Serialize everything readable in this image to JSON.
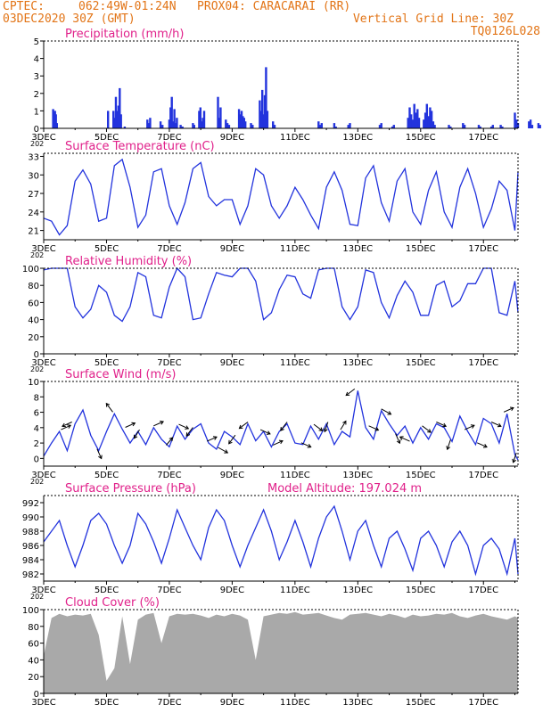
{
  "header": {
    "source": "CPTEC:",
    "location": "062:49W-01:24N   PROX04: CARACARAI (RR)",
    "run": "03DEC2020 30Z (GMT)",
    "grid_line": "Vertical Grid Line: 30Z",
    "model": "TQ0126L028"
  },
  "colors": {
    "line": "#2233dd",
    "title": "#e0208a",
    "header": "#e27416",
    "cloud": "#a9a9a9",
    "axis": "#000000"
  },
  "x_ticks": [
    "3DEC",
    "5DEC",
    "7DEC",
    "9DEC",
    "11DEC",
    "13DEC",
    "15DEC",
    "17DEC"
  ],
  "x_range_days": [
    0,
    15.1
  ],
  "cut_tick": "202",
  "chart_data": [
    {
      "id": "precip",
      "type": "bar",
      "title": "Precipitation (mm/h)",
      "ylim": [
        0,
        5
      ],
      "yticks": [
        0,
        1,
        2,
        3,
        4,
        5
      ],
      "x_day": [
        0.3,
        0.33,
        0.36,
        0.39,
        0.42,
        2.05,
        2.22,
        2.26,
        2.3,
        2.34,
        2.38,
        2.42,
        2.46,
        2.58,
        3.3,
        3.35,
        3.39,
        3.72,
        3.78,
        4.0,
        4.04,
        4.08,
        4.12,
        4.16,
        4.2,
        4.24,
        4.36,
        4.42,
        4.75,
        4.79,
        4.95,
        4.99,
        5.03,
        5.07,
        5.11,
        5.55,
        5.59,
        5.63,
        5.8,
        5.85,
        5.9,
        6.22,
        6.26,
        6.3,
        6.34,
        6.38,
        6.42,
        6.6,
        6.65,
        6.88,
        6.92,
        6.96,
        7.0,
        7.04,
        7.08,
        7.12,
        7.3,
        7.35,
        8.75,
        8.8,
        8.85,
        9.25,
        9.3,
        9.7,
        9.75,
        10.7,
        10.75,
        11.1,
        11.15,
        11.6,
        11.65,
        11.7,
        11.75,
        11.8,
        11.85,
        11.9,
        11.95,
        12.1,
        12.15,
        12.2,
        12.25,
        12.3,
        12.35,
        12.4,
        12.45,
        12.9,
        12.95,
        13.35,
        13.4,
        13.85,
        13.9,
        14.25,
        14.3,
        14.55,
        14.6,
        15.0,
        15.05,
        15.1,
        15.45,
        15.5,
        15.55,
        15.75,
        15.8
      ],
      "values": [
        1.1,
        0.6,
        1.0,
        0.8,
        0.3,
        1.0,
        1.0,
        0.6,
        1.8,
        1.0,
        1.3,
        2.3,
        0.8,
        0.1,
        0.5,
        0.3,
        0.6,
        0.4,
        0.2,
        0.5,
        1.2,
        1.8,
        0.4,
        1.1,
        0.3,
        0.6,
        0.2,
        0.1,
        0.3,
        0.2,
        1.0,
        1.2,
        0.4,
        0.6,
        1.0,
        1.8,
        0.6,
        1.2,
        0.5,
        0.3,
        0.2,
        1.1,
        0.8,
        1.0,
        0.7,
        0.6,
        0.4,
        0.3,
        0.2,
        1.6,
        1.0,
        2.2,
        0.8,
        1.9,
        3.5,
        1.0,
        0.4,
        0.2,
        0.4,
        0.2,
        0.3,
        0.3,
        0.1,
        0.2,
        0.3,
        0.2,
        0.3,
        0.1,
        0.2,
        0.6,
        1.2,
        0.8,
        0.5,
        1.4,
        0.9,
        1.1,
        0.6,
        0.5,
        0.9,
        1.4,
        0.7,
        1.2,
        1.0,
        0.4,
        0.2,
        0.2,
        0.1,
        0.3,
        0.2,
        0.2,
        0.1,
        0.1,
        0.2,
        0.2,
        0.1,
        0.9,
        0.5,
        0.3,
        0.4,
        0.5,
        0.2,
        0.3,
        0.2
      ]
    },
    {
      "id": "temp",
      "type": "line",
      "title": "Surface Temperature (nC)",
      "ylim": [
        19.5,
        33.5
      ],
      "yticks": [
        21,
        24,
        27,
        30,
        33
      ],
      "x": [
        0,
        0.25,
        0.5,
        0.75,
        1,
        1.25,
        1.5,
        1.75,
        2,
        2.25,
        2.5,
        2.75,
        3,
        3.25,
        3.5,
        3.75,
        4,
        4.25,
        4.5,
        4.75,
        5,
        5.25,
        5.5,
        5.75,
        6,
        6.25,
        6.5,
        6.75,
        7,
        7.25,
        7.5,
        7.75,
        8,
        8.25,
        8.5,
        8.75,
        9,
        9.25,
        9.5,
        9.75,
        10,
        10.25,
        10.5,
        10.75,
        11,
        11.25,
        11.5,
        11.75,
        12,
        12.25,
        12.5,
        12.75,
        13,
        13.25,
        13.5,
        13.75,
        14,
        14.25,
        14.5,
        14.75,
        15,
        15.1
      ],
      "y": [
        23,
        22.5,
        20.3,
        21.8,
        29,
        30.8,
        28.5,
        22.5,
        23,
        31.5,
        32.5,
        28,
        21.5,
        23.5,
        30.5,
        31,
        25,
        22,
        25.5,
        31,
        32,
        26.5,
        25,
        26,
        26,
        22,
        25,
        31,
        30,
        25,
        23,
        25,
        28,
        26,
        23.5,
        21.3,
        28,
        30.5,
        27.5,
        22,
        21.8,
        29.5,
        31.5,
        25.5,
        22.5,
        29,
        31,
        24,
        22,
        27.5,
        30.5,
        24,
        21.5,
        28,
        31,
        27,
        21.5,
        24.5,
        29,
        27.5,
        21,
        30.5
      ]
    },
    {
      "id": "rh",
      "type": "line",
      "title": "Relative Humidity (%)",
      "ylim": [
        0,
        100
      ],
      "yticks": [
        0,
        20,
        40,
        60,
        80,
        100
      ],
      "x": [
        0,
        0.25,
        0.5,
        0.75,
        1,
        1.25,
        1.5,
        1.75,
        2,
        2.25,
        2.5,
        2.75,
        3,
        3.25,
        3.5,
        3.75,
        4,
        4.25,
        4.5,
        4.75,
        5,
        5.25,
        5.5,
        5.75,
        6,
        6.25,
        6.5,
        6.75,
        7,
        7.25,
        7.5,
        7.75,
        8,
        8.25,
        8.5,
        8.75,
        9,
        9.25,
        9.5,
        9.75,
        10,
        10.25,
        10.5,
        10.75,
        11,
        11.25,
        11.5,
        11.75,
        12,
        12.25,
        12.5,
        12.75,
        13,
        13.25,
        13.5,
        13.75,
        14,
        14.25,
        14.5,
        14.75,
        15,
        15.1
      ],
      "y": [
        98,
        100,
        100,
        100,
        55,
        42,
        52,
        80,
        72,
        45,
        38,
        55,
        95,
        90,
        45,
        42,
        78,
        100,
        90,
        40,
        42,
        70,
        95,
        92,
        90,
        100,
        100,
        85,
        40,
        48,
        75,
        92,
        90,
        70,
        65,
        98,
        100,
        100,
        55,
        40,
        55,
        98,
        95,
        60,
        42,
        68,
        85,
        72,
        45,
        45,
        80,
        85,
        55,
        62,
        82,
        82,
        100,
        100,
        48,
        45,
        85,
        48
      ]
    },
    {
      "id": "wind",
      "type": "line",
      "title": "Surface Wind (m/s)",
      "ylim": [
        -1,
        10
      ],
      "yticks": [
        0,
        2,
        4,
        6,
        8,
        10
      ],
      "x": [
        0,
        0.25,
        0.5,
        0.75,
        1,
        1.25,
        1.5,
        1.75,
        2,
        2.25,
        2.5,
        2.75,
        3,
        3.25,
        3.5,
        3.75,
        4,
        4.25,
        4.5,
        4.75,
        5,
        5.25,
        5.5,
        5.75,
        6,
        6.25,
        6.5,
        6.75,
        7,
        7.25,
        7.5,
        7.75,
        8,
        8.25,
        8.5,
        8.75,
        9,
        9.25,
        9.5,
        9.75,
        10,
        10.25,
        10.5,
        10.75,
        11,
        11.25,
        11.5,
        11.75,
        12,
        12.25,
        12.5,
        12.75,
        13,
        13.25,
        13.5,
        13.75,
        14,
        14.25,
        14.5,
        14.75,
        15,
        15.1
      ],
      "y": [
        0.3,
        2,
        3.5,
        1,
        4.5,
        6.3,
        3,
        1,
        3.5,
        5.8,
        3.8,
        2,
        3.5,
        1.8,
        4,
        2.5,
        1.5,
        4.2,
        2.5,
        3.8,
        4.5,
        2,
        1.2,
        3.5,
        2.8,
        1.8,
        4.5,
        2.3,
        3.5,
        1.5,
        3.5,
        4.5,
        2,
        1.8,
        4.2,
        2.5,
        4.5,
        1.8,
        3.5,
        2.8,
        8.8,
        4,
        2.5,
        6.2,
        4.5,
        3,
        4.2,
        2,
        4,
        2.5,
        4.5,
        4,
        2.2,
        5.5,
        3.5,
        1.8,
        5.2,
        4.5,
        2,
        5.8,
        0.5,
        -0.2
      ],
      "vector_x": [
        0.55,
        0.9,
        1.7,
        2.2,
        2.6,
        3.05,
        3.5,
        3.9,
        4.3,
        4.75,
        5.2,
        5.55,
        6.1,
        6.5,
        6.9,
        7.3,
        7.75,
        8.2,
        8.6,
        9.05,
        9.45,
        9.9,
        10.35,
        10.75,
        11.2,
        11.65,
        12.05,
        12.5,
        12.95,
        13.4,
        13.8,
        14.25,
        14.65,
        15.05
      ],
      "vector_dx": [
        0.9,
        -0.9,
        0.4,
        -0.6,
        0.9,
        -0.5,
        0.9,
        0.6,
        0.9,
        -0.6,
        0.9,
        0.9,
        -0.6,
        -0.8,
        0.9,
        0.9,
        -0.6,
        0.9,
        0.8,
        -0.3,
        0.5,
        -0.8,
        0.9,
        0.9,
        0.4,
        -0.9,
        0.8,
        0.9,
        -0.3,
        0.9,
        0.9,
        0.9,
        0.9,
        -0.3
      ],
      "vector_dy": [
        -0.4,
        0.4,
        0.9,
        -0.8,
        -0.4,
        0.8,
        -0.4,
        -0.7,
        0.4,
        0.8,
        -0.4,
        0.5,
        0.8,
        0.6,
        0.4,
        -0.4,
        0.8,
        0.4,
        0.6,
        0.9,
        -0.8,
        0.6,
        0.4,
        0.5,
        0.9,
        -0.4,
        0.6,
        0.4,
        0.9,
        -0.4,
        0.4,
        0.4,
        -0.4,
        0.9
      ]
    },
    {
      "id": "pressure",
      "type": "line",
      "title": "Surface Pressure (hPa)",
      "annotation": "Model Altitude: 197.024 m",
      "ylim": [
        981,
        993
      ],
      "yticks": [
        982,
        984,
        986,
        988,
        990,
        992
      ],
      "x": [
        0,
        0.25,
        0.5,
        0.75,
        1,
        1.25,
        1.5,
        1.75,
        2,
        2.25,
        2.5,
        2.75,
        3,
        3.25,
        3.5,
        3.75,
        4,
        4.25,
        4.5,
        4.75,
        5,
        5.25,
        5.5,
        5.75,
        6,
        6.25,
        6.5,
        6.75,
        7,
        7.25,
        7.5,
        7.75,
        8,
        8.25,
        8.5,
        8.75,
        9,
        9.25,
        9.5,
        9.75,
        10,
        10.25,
        10.5,
        10.75,
        11,
        11.25,
        11.5,
        11.75,
        12,
        12.25,
        12.5,
        12.75,
        13,
        13.25,
        13.5,
        13.75,
        14,
        14.25,
        14.5,
        14.75,
        15,
        15.1
      ],
      "y": [
        986.5,
        988,
        989.5,
        986,
        983,
        986,
        989.5,
        990.5,
        989,
        986,
        983.5,
        986,
        990.5,
        989,
        986.5,
        983.5,
        987,
        991,
        988.5,
        986,
        984,
        988.5,
        991,
        989.5,
        986,
        983,
        986,
        988.5,
        991,
        988,
        984,
        986.5,
        989.5,
        986.5,
        983,
        987,
        990,
        991.5,
        988,
        984,
        988,
        989.5,
        986,
        983,
        987,
        988,
        985.5,
        982.5,
        987,
        988,
        986,
        983,
        986.5,
        988,
        986,
        982,
        986,
        987,
        985.5,
        982,
        987,
        982
      ]
    },
    {
      "id": "cloud",
      "type": "area",
      "title": "Cloud Cover (%)",
      "ylim": [
        0,
        100
      ],
      "yticks": [
        0,
        20,
        40,
        60,
        80,
        100
      ],
      "x": [
        0,
        0.25,
        0.5,
        0.75,
        1,
        1.25,
        1.5,
        1.75,
        2,
        2.25,
        2.5,
        2.75,
        3,
        3.25,
        3.5,
        3.75,
        4,
        4.25,
        4.5,
        4.75,
        5,
        5.25,
        5.5,
        5.75,
        6,
        6.25,
        6.5,
        6.75,
        7,
        7.25,
        7.5,
        7.75,
        8,
        8.25,
        8.5,
        8.75,
        9,
        9.25,
        9.5,
        9.75,
        10,
        10.25,
        10.5,
        10.75,
        11,
        11.25,
        11.5,
        11.75,
        12,
        12.25,
        12.5,
        12.75,
        13,
        13.25,
        13.5,
        13.75,
        14,
        14.25,
        14.5,
        14.75,
        15,
        15.1
      ],
      "y": [
        45,
        90,
        95,
        92,
        94,
        93,
        95,
        70,
        15,
        30,
        92,
        35,
        88,
        94,
        96,
        60,
        92,
        95,
        94,
        95,
        93,
        90,
        94,
        92,
        95,
        93,
        88,
        40,
        92,
        94,
        96,
        95,
        97,
        94,
        95,
        96,
        93,
        90,
        88,
        94,
        95,
        96,
        94,
        92,
        95,
        93,
        90,
        94,
        92,
        93,
        95,
        94,
        96,
        92,
        90,
        93,
        95,
        92,
        90,
        88,
        92,
        90
      ]
    }
  ]
}
